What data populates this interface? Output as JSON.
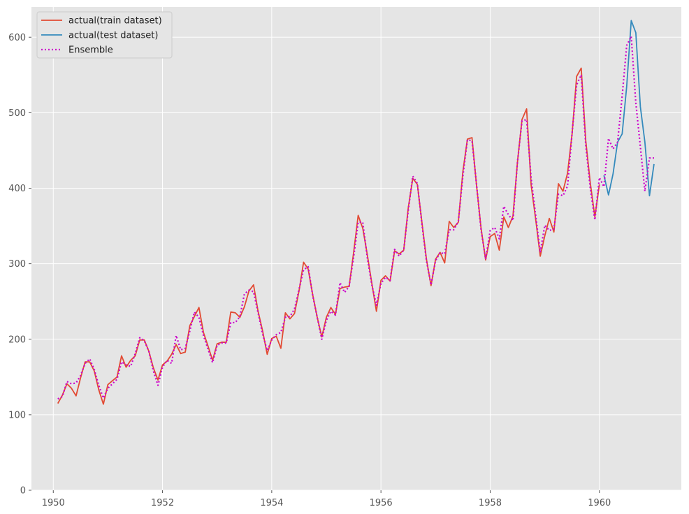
{
  "chart_data": {
    "type": "line",
    "title": "",
    "xlabel": "",
    "ylabel": "",
    "xlim": [
      1949.6,
      1961.5
    ],
    "ylim": [
      0,
      640
    ],
    "xticks": [
      1950,
      1952,
      1954,
      1956,
      1958,
      1960
    ],
    "yticks": [
      0,
      100,
      200,
      300,
      400,
      500,
      600
    ],
    "grid": true,
    "legend_position": "top-left",
    "background": "#e5e5e5",
    "series": [
      {
        "name": "actual(train dataset)",
        "color": "#e24a33",
        "style": "solid",
        "x": [
          1950.083,
          1950.167,
          1950.25,
          1950.333,
          1950.417,
          1950.5,
          1950.583,
          1950.667,
          1950.75,
          1950.833,
          1950.917,
          1951.0,
          1951.083,
          1951.167,
          1951.25,
          1951.333,
          1951.417,
          1951.5,
          1951.583,
          1951.667,
          1951.75,
          1951.833,
          1951.917,
          1952.0,
          1952.083,
          1952.167,
          1952.25,
          1952.333,
          1952.417,
          1952.5,
          1952.583,
          1952.667,
          1952.75,
          1952.833,
          1952.917,
          1953.0,
          1953.083,
          1953.167,
          1953.25,
          1953.333,
          1953.417,
          1953.5,
          1953.583,
          1953.667,
          1953.75,
          1953.833,
          1953.917,
          1954.0,
          1954.083,
          1954.167,
          1954.25,
          1954.333,
          1954.417,
          1954.5,
          1954.583,
          1954.667,
          1954.75,
          1954.833,
          1954.917,
          1955.0,
          1955.083,
          1955.167,
          1955.25,
          1955.333,
          1955.417,
          1955.5,
          1955.583,
          1955.667,
          1955.75,
          1955.833,
          1955.917,
          1956.0,
          1956.083,
          1956.167,
          1956.25,
          1956.333,
          1956.417,
          1956.5,
          1956.583,
          1956.667,
          1956.75,
          1956.833,
          1956.917,
          1957.0,
          1957.083,
          1957.167,
          1957.25,
          1957.333,
          1957.417,
          1957.5,
          1957.583,
          1957.667,
          1957.75,
          1957.833,
          1957.917,
          1958.0,
          1958.083,
          1958.167,
          1958.25,
          1958.333,
          1958.417,
          1958.5,
          1958.583,
          1958.667,
          1958.75,
          1958.833,
          1958.917,
          1959.0,
          1959.083,
          1959.167,
          1959.25,
          1959.333,
          1959.417,
          1959.5,
          1959.583,
          1959.667,
          1959.75,
          1959.833,
          1959.917,
          1960.0
        ],
        "values": [
          115,
          126,
          141,
          135,
          125,
          149,
          170,
          170,
          158,
          133,
          114,
          140,
          145,
          150,
          178,
          163,
          172,
          178,
          199,
          199,
          184,
          162,
          146,
          166,
          171,
          180,
          193,
          181,
          183,
          218,
          230,
          242,
          209,
          191,
          172,
          194,
          196,
          196,
          236,
          235,
          229,
          243,
          264,
          272,
          237,
          211,
          180,
          201,
          204,
          188,
          235,
          227,
          234,
          264,
          302,
          293,
          259,
          229,
          203,
          229,
          242,
          233,
          267,
          269,
          270,
          315,
          364,
          347,
          312,
          274,
          237,
          278,
          284,
          277,
          317,
          313,
          318,
          374,
          413,
          405,
          355,
          306,
          271,
          306,
          315,
          301,
          356,
          348,
          355,
          422,
          465,
          467,
          404,
          347,
          305,
          336,
          340,
          318,
          362,
          348,
          363,
          435,
          491,
          505,
          404,
          359,
          310,
          337,
          360,
          342,
          406,
          396,
          420,
          472,
          548,
          559,
          463,
          407,
          362,
          405
        ]
      },
      {
        "name": "actual(test dataset)",
        "color": "#348abd",
        "style": "solid",
        "x": [
          1960.083,
          1960.167,
          1960.25,
          1960.333,
          1960.417,
          1960.5,
          1960.583,
          1960.667,
          1960.75,
          1960.833,
          1960.917,
          1961.0
        ],
        "values": [
          417,
          391,
          419,
          461,
          472,
          535,
          622,
          606,
          508,
          461,
          390,
          432
        ]
      },
      {
        "name": "Ensemble",
        "color": "#cc00cc",
        "style": "dotted",
        "x": [
          1950.083,
          1950.167,
          1950.25,
          1950.333,
          1950.417,
          1950.5,
          1950.583,
          1950.667,
          1950.75,
          1950.833,
          1950.917,
          1951.0,
          1951.083,
          1951.167,
          1951.25,
          1951.333,
          1951.417,
          1951.5,
          1951.583,
          1951.667,
          1951.75,
          1951.833,
          1951.917,
          1952.0,
          1952.083,
          1952.167,
          1952.25,
          1952.333,
          1952.417,
          1952.5,
          1952.583,
          1952.667,
          1952.75,
          1952.833,
          1952.917,
          1953.0,
          1953.083,
          1953.167,
          1953.25,
          1953.333,
          1953.417,
          1953.5,
          1953.583,
          1953.667,
          1953.75,
          1953.833,
          1953.917,
          1954.0,
          1954.083,
          1954.167,
          1954.25,
          1954.333,
          1954.417,
          1954.5,
          1954.583,
          1954.667,
          1954.75,
          1954.833,
          1954.917,
          1955.0,
          1955.083,
          1955.167,
          1955.25,
          1955.333,
          1955.417,
          1955.5,
          1955.583,
          1955.667,
          1955.75,
          1955.833,
          1955.917,
          1956.0,
          1956.083,
          1956.167,
          1956.25,
          1956.333,
          1956.417,
          1956.5,
          1956.583,
          1956.667,
          1956.75,
          1956.833,
          1956.917,
          1957.0,
          1957.083,
          1957.167,
          1957.25,
          1957.333,
          1957.417,
          1957.5,
          1957.583,
          1957.667,
          1957.75,
          1957.833,
          1957.917,
          1958.0,
          1958.083,
          1958.167,
          1958.25,
          1958.333,
          1958.417,
          1958.5,
          1958.583,
          1958.667,
          1958.75,
          1958.833,
          1958.917,
          1959.0,
          1959.083,
          1959.167,
          1959.25,
          1959.333,
          1959.417,
          1959.5,
          1959.583,
          1959.667,
          1959.75,
          1959.833,
          1959.917,
          1960.0,
          1960.083,
          1960.167,
          1960.25,
          1960.333,
          1960.417,
          1960.5,
          1960.583,
          1960.667,
          1960.75,
          1960.833,
          1960.917,
          1961.0
        ],
        "values": [
          121,
          124,
          144,
          141,
          142,
          152,
          168,
          174,
          160,
          139,
          122,
          135,
          141,
          147,
          170,
          166,
          164,
          181,
          202,
          198,
          184,
          158,
          139,
          163,
          172,
          168,
          205,
          186,
          188,
          211,
          236,
          229,
          205,
          187,
          169,
          192,
          195,
          195,
          222,
          222,
          230,
          260,
          265,
          263,
          235,
          207,
          185,
          199,
          206,
          209,
          229,
          230,
          240,
          266,
          292,
          296,
          258,
          229,
          200,
          225,
          237,
          232,
          275,
          262,
          270,
          309,
          355,
          355,
          308,
          272,
          245,
          274,
          282,
          278,
          319,
          310,
          318,
          371,
          416,
          406,
          353,
          304,
          272,
          304,
          315,
          313,
          345,
          345,
          356,
          416,
          464,
          463,
          405,
          345,
          306,
          344,
          348,
          333,
          376,
          365,
          357,
          435,
          489,
          491,
          413,
          364,
          315,
          351,
          344,
          346,
          392,
          390,
          403,
          473,
          537,
          550,
          457,
          400,
          358,
          414,
          402,
          466,
          452,
          461,
          522,
          589,
          601,
          513,
          455,
          396,
          440,
          440
        ]
      }
    ]
  }
}
